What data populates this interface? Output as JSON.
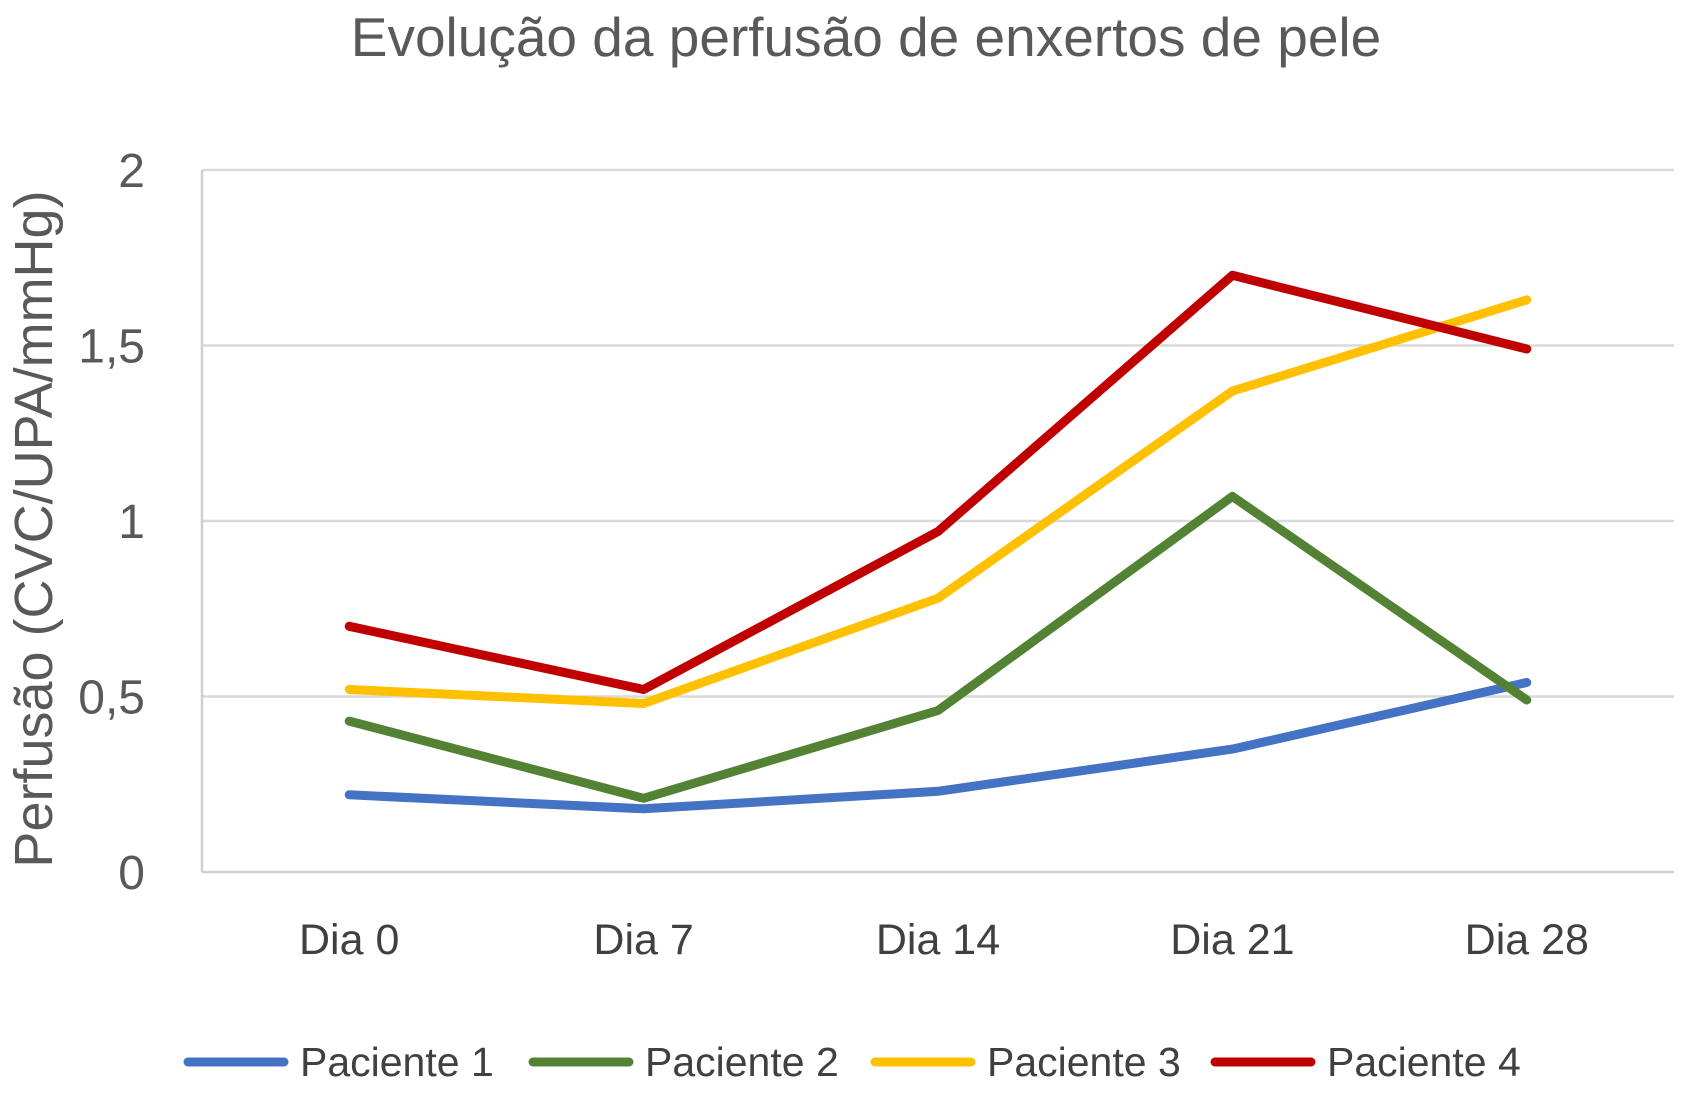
{
  "chart_data": {
    "type": "line",
    "title": "Evolução da perfusão de enxertos de pele",
    "ylabel": "Perfusão (CVC/UPA/mmHg)",
    "categories": [
      "Dia 0",
      "Dia 7",
      "Dia 14",
      "Dia 21",
      "Dia 28"
    ],
    "ylim": [
      0,
      2
    ],
    "yticks": [
      0,
      0.5,
      1,
      1.5,
      2
    ],
    "ytick_labels": [
      "0",
      "0,5",
      "1",
      "1,5",
      "2"
    ],
    "grid": true,
    "legend_position": "bottom",
    "series": [
      {
        "name": "Paciente 1",
        "color": "#4472C4",
        "values": [
          0.22,
          0.18,
          0.23,
          0.35,
          0.54
        ]
      },
      {
        "name": "Paciente 2",
        "color": "#548235",
        "values": [
          0.43,
          0.21,
          0.46,
          1.07,
          0.49
        ]
      },
      {
        "name": "Paciente 3",
        "color": "#FFC000",
        "values": [
          0.52,
          0.48,
          0.78,
          1.37,
          1.63
        ]
      },
      {
        "name": "Paciente 4",
        "color": "#C00000",
        "values": [
          0.7,
          0.52,
          0.97,
          1.7,
          1.49
        ]
      }
    ]
  }
}
